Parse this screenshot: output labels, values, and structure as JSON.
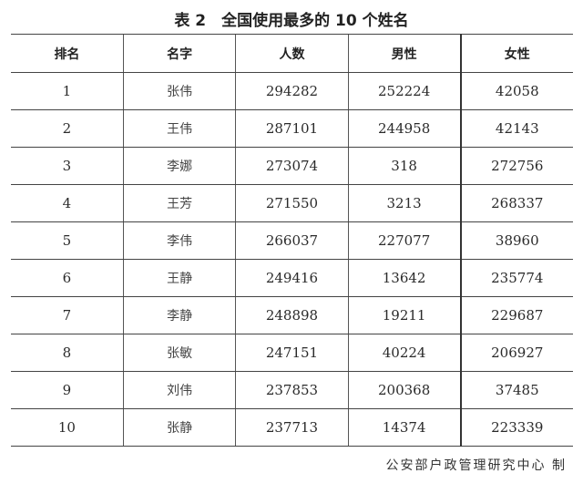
{
  "title": "表 2　全国使用最多的 10 个姓名",
  "headers": [
    "排名",
    "名字",
    "人数",
    "男性",
    "女性"
  ],
  "rows": [
    [
      "1",
      "张伟",
      "294282",
      "252224",
      "42058"
    ],
    [
      "2",
      "王伟",
      "287101",
      "244958",
      "42143"
    ],
    [
      "3",
      "李娜",
      "273074",
      "318",
      "272756"
    ],
    [
      "4",
      "王芳",
      "271550",
      "3213",
      "268337"
    ],
    [
      "5",
      "李伟",
      "266037",
      "227077",
      "38960"
    ],
    [
      "6",
      "王静",
      "249416",
      "13642",
      "235774"
    ],
    [
      "7",
      "李静",
      "248898",
      "19211",
      "229687"
    ],
    [
      "8",
      "张敏",
      "247151",
      "40224",
      "206927"
    ],
    [
      "9",
      "刘伟",
      "237853",
      "200368",
      "37485"
    ],
    [
      "10",
      "张静",
      "237713",
      "14374",
      "223339"
    ]
  ],
  "footer": "公安部户政管理研究中心 制"
}
